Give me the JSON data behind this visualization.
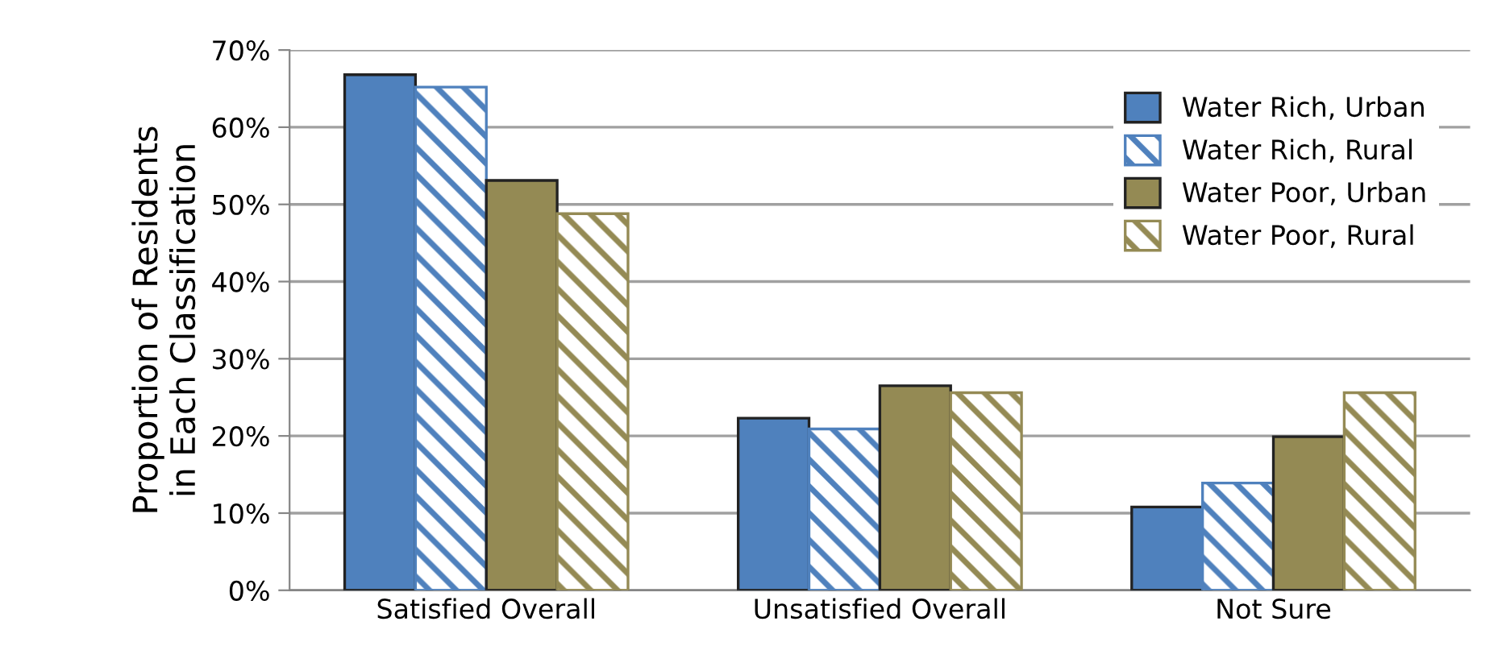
{
  "chart_data": {
    "type": "bar",
    "ylabel": "Proportion of Residents\nin Each Classification",
    "categories": [
      "Satisfied Overall",
      "Unsatisfied Overall",
      "Not Sure"
    ],
    "series": [
      {
        "name": "Water Rich, Urban",
        "color": "#4f81bd",
        "values": [
          66.8,
          22.3,
          10.8
        ]
      },
      {
        "name": "Water Rich, Rural",
        "color": "#4f81bd",
        "values": [
          65.2,
          20.9,
          13.9
        ]
      },
      {
        "name": "Water Poor, Urban",
        "color": "#948a54",
        "values": [
          53.1,
          26.5,
          19.9
        ]
      },
      {
        "name": "Water Poor, Rural",
        "color": "#948a54",
        "values": [
          48.8,
          25.6,
          25.6
        ]
      }
    ],
    "ylim": [
      0,
      70
    ],
    "yticks": [
      {
        "value": 0,
        "label": "0%"
      },
      {
        "value": 10,
        "label": "10%"
      },
      {
        "value": 20,
        "label": "20%"
      },
      {
        "value": 30,
        "label": "30%"
      },
      {
        "value": 40,
        "label": "40%"
      },
      {
        "value": 50,
        "label": "50%"
      },
      {
        "value": 60,
        "label": "60%"
      },
      {
        "value": 70,
        "label": "70%"
      }
    ],
    "grid": "y",
    "legend": "top right"
  }
}
